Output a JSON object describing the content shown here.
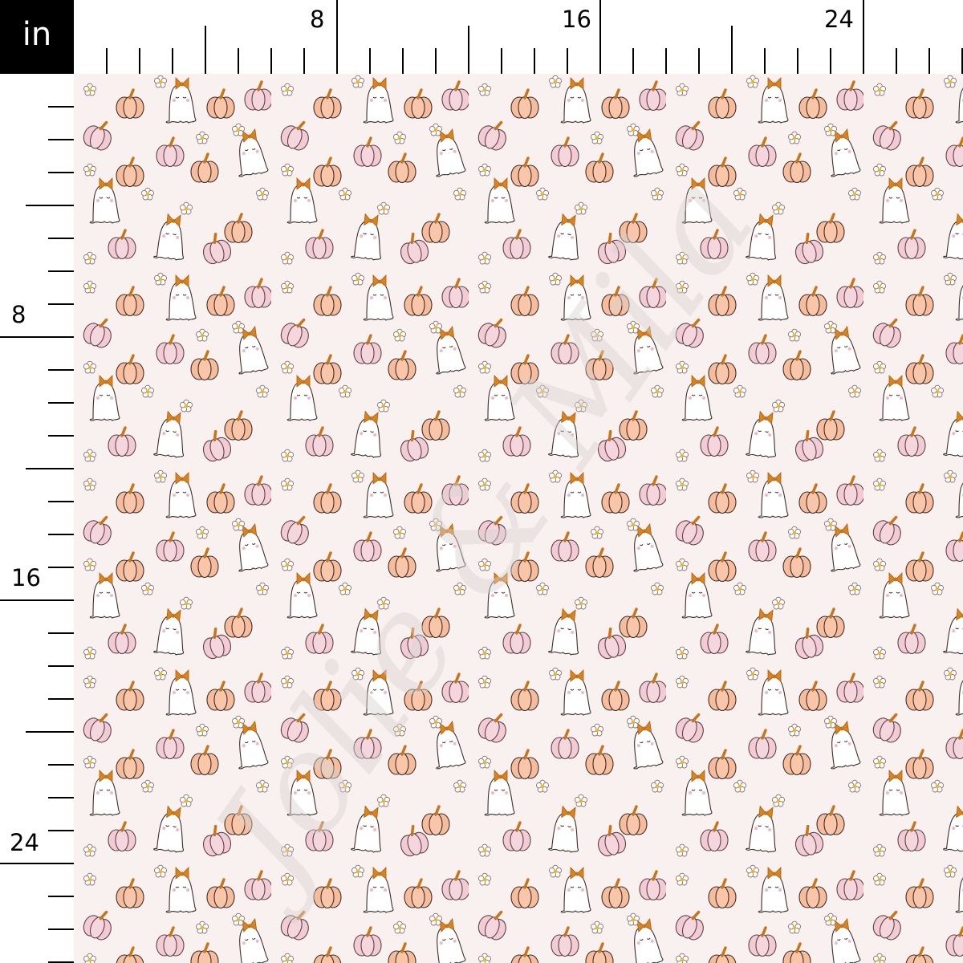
{
  "ruler": {
    "unit": "in",
    "top_labels": [
      "8",
      "16",
      "24"
    ],
    "left_labels": [
      "8",
      "16",
      "24"
    ]
  },
  "fabric": {
    "motifs": [
      "ghost-with-bow",
      "orange-pumpkin",
      "pink-pumpkin",
      "daisy-flower"
    ],
    "watermark": "Jolie & Mila",
    "colors": {
      "background": "#f9f1ef",
      "orange_pumpkin": "#f7bc9c",
      "pink_pumpkin": "#f2cbd5",
      "bow": "#d9831f",
      "ghost": "#ffffff",
      "outline": "#3a2e2a",
      "flower_center": "#f0b429"
    }
  }
}
